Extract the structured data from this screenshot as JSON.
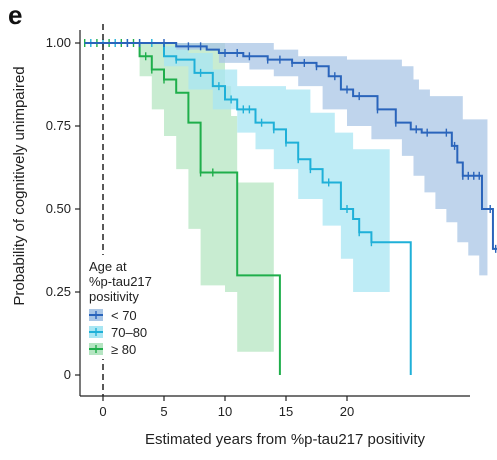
{
  "panel_label": "e",
  "chart_data": {
    "type": "line",
    "subtype": "kaplan-meier",
    "xlabel": "Estimated years from %p-tau217 positivity",
    "ylabel": "Probability of cognitively unimpaired",
    "xlim": [
      -3.5,
      30.5
    ],
    "ylim": [
      -0.02,
      1.06
    ],
    "xticks": [
      0,
      5,
      10,
      15,
      20
    ],
    "xtick_labels": [
      "0",
      "5",
      "10",
      "15",
      "20"
    ],
    "yticks": [
      0,
      0.25,
      0.5,
      0.75,
      1.0
    ],
    "ytick_labels": [
      "0",
      "0.25",
      "0.50",
      "0.75",
      "1.00"
    ],
    "reference_line_x": 0,
    "grid": false,
    "legend": {
      "title_lines": [
        "Age at",
        "%p-tau217",
        "positivity"
      ],
      "position": "left",
      "items": [
        "< 70",
        "70–80",
        "≥ 80"
      ]
    },
    "series": [
      {
        "name": "< 70",
        "color": "#2a64bb",
        "ci_color": "#a9c6e6",
        "steps": [
          [
            -1.5,
            1.0
          ],
          [
            6,
            0.99
          ],
          [
            8.5,
            0.98
          ],
          [
            9.5,
            0.97
          ],
          [
            11.5,
            0.96
          ],
          [
            13.5,
            0.95
          ],
          [
            15.5,
            0.94
          ],
          [
            17.5,
            0.93
          ],
          [
            18.5,
            0.9
          ],
          [
            19.5,
            0.86
          ],
          [
            20.5,
            0.84
          ],
          [
            22.5,
            0.8
          ],
          [
            24,
            0.76
          ],
          [
            25.5,
            0.74
          ],
          [
            27.5,
            0.73
          ],
          [
            29.5,
            0.73
          ],
          [
            33,
            0.69
          ],
          [
            34,
            0.64
          ],
          [
            35,
            0.6
          ],
          [
            38.5,
            0.5
          ],
          [
            40.5,
            0.38
          ],
          [
            45,
            0.37
          ]
        ],
        "ci_upper": [
          [
            -1.5,
            1.0
          ],
          [
            12,
            1.0
          ],
          [
            14,
            0.98
          ],
          [
            16,
            0.96
          ],
          [
            20,
            0.95
          ],
          [
            24.5,
            0.93
          ],
          [
            26,
            0.89
          ],
          [
            27,
            0.86
          ],
          [
            29,
            0.84
          ],
          [
            35,
            0.77
          ],
          [
            39.5,
            0.77
          ]
        ],
        "ci_lower": [
          [
            -1.5,
            1.0
          ],
          [
            6,
            0.98
          ],
          [
            9.5,
            0.94
          ],
          [
            12,
            0.92
          ],
          [
            14,
            0.9
          ],
          [
            16,
            0.87
          ],
          [
            18,
            0.8
          ],
          [
            20,
            0.75
          ],
          [
            22,
            0.71
          ],
          [
            24.5,
            0.66
          ],
          [
            26,
            0.6
          ],
          [
            28,
            0.55
          ],
          [
            30,
            0.5
          ],
          [
            32,
            0.46
          ],
          [
            34,
            0.4
          ],
          [
            36,
            0.36
          ],
          [
            38,
            0.3
          ],
          [
            39.5,
            0.18
          ]
        ],
        "censor_x": [
          2,
          3,
          5,
          7,
          8,
          10,
          11,
          12,
          13.5,
          14.5,
          15.5,
          16.5,
          17.5,
          19,
          20,
          21,
          22.5,
          24,
          26.5,
          28.5,
          32,
          33.5,
          35,
          36,
          37,
          38,
          40,
          41
        ]
      },
      {
        "name": "70–80",
        "color": "#1fb0d8",
        "ci_color": "#a8e6f3",
        "steps": [
          [
            -1.5,
            1.0
          ],
          [
            5,
            0.96
          ],
          [
            6,
            0.95
          ],
          [
            7.5,
            0.91
          ],
          [
            9,
            0.87
          ],
          [
            10,
            0.83
          ],
          [
            11,
            0.8
          ],
          [
            12.5,
            0.76
          ],
          [
            14,
            0.74
          ],
          [
            15,
            0.7
          ],
          [
            16,
            0.65
          ],
          [
            17,
            0.62
          ],
          [
            18,
            0.58
          ],
          [
            19.5,
            0.5
          ],
          [
            20.5,
            0.47
          ],
          [
            21,
            0.43
          ],
          [
            22,
            0.4
          ],
          [
            24.5,
            0.4
          ],
          [
            25.5,
            0.0
          ]
        ],
        "ci_upper": [
          [
            -1.5,
            1.0
          ],
          [
            5,
            0.99
          ],
          [
            7,
            0.97
          ],
          [
            9,
            0.92
          ],
          [
            11,
            0.87
          ],
          [
            15,
            0.86
          ],
          [
            17,
            0.79
          ],
          [
            19,
            0.73
          ],
          [
            20.5,
            0.68
          ],
          [
            23.5,
            0.65
          ]
        ],
        "ci_lower": [
          [
            -1.5,
            1.0
          ],
          [
            5,
            0.93
          ],
          [
            7,
            0.86
          ],
          [
            9,
            0.8
          ],
          [
            11,
            0.73
          ],
          [
            12.5,
            0.68
          ],
          [
            14,
            0.62
          ],
          [
            16,
            0.53
          ],
          [
            18,
            0.45
          ],
          [
            19.5,
            0.35
          ],
          [
            20.5,
            0.25
          ],
          [
            23.5,
            0.25
          ]
        ],
        "censor_x": [
          -1,
          0,
          1,
          2,
          3,
          4,
          6,
          8,
          9.5,
          10.5,
          11.5,
          12,
          13,
          14,
          15,
          16,
          17,
          18.5,
          20,
          21,
          22
        ]
      },
      {
        "name": "≥ 80",
        "color": "#1fae4b",
        "ci_color": "#b5e5c2",
        "steps": [
          [
            -1.5,
            1.0
          ],
          [
            3,
            0.96
          ],
          [
            4,
            0.92
          ],
          [
            5,
            0.89
          ],
          [
            6,
            0.85
          ],
          [
            7,
            0.76
          ],
          [
            8,
            0.61
          ],
          [
            10,
            0.61
          ],
          [
            11,
            0.3
          ],
          [
            14,
            0.3
          ],
          [
            14.5,
            0.0
          ]
        ],
        "ci_upper": [
          [
            -1.5,
            1.0
          ],
          [
            6,
            1.0
          ],
          [
            9.5,
            1.0
          ],
          [
            10,
            0.87
          ],
          [
            10.5,
            0.78
          ],
          [
            11,
            0.58
          ],
          [
            14,
            0.58
          ]
        ],
        "ci_lower": [
          [
            -1.5,
            1.0
          ],
          [
            3,
            0.9
          ],
          [
            4,
            0.8
          ],
          [
            5,
            0.72
          ],
          [
            6,
            0.62
          ],
          [
            7,
            0.44
          ],
          [
            8,
            0.27
          ],
          [
            10,
            0.25
          ],
          [
            11,
            0.07
          ],
          [
            14,
            0.07
          ]
        ],
        "censor_x": [
          -1.5,
          -0.5,
          0.5,
          1.5,
          2.5,
          3.5,
          4,
          5,
          8,
          9
        ]
      }
    ]
  }
}
